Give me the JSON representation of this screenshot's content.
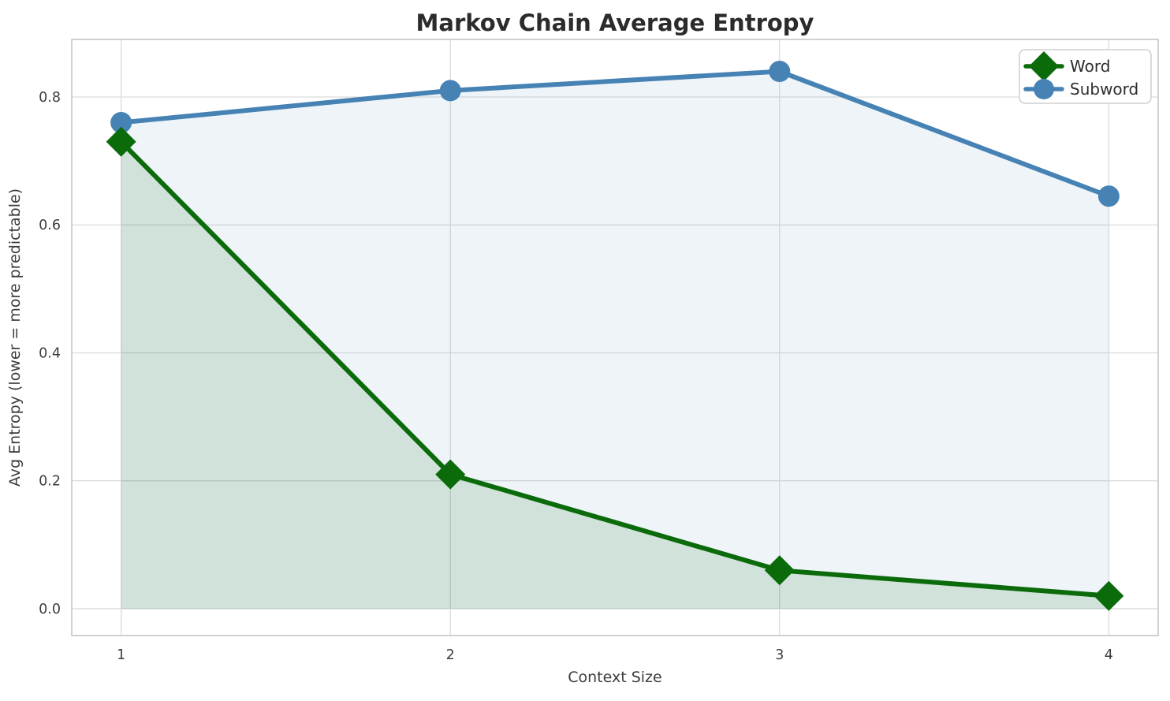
{
  "chart_data": {
    "type": "line",
    "title": "Markov Chain Average Entropy",
    "xlabel": "Context Size",
    "ylabel": "Avg Entropy (lower = more predictable)",
    "x": [
      1,
      2,
      3,
      4
    ],
    "xtick_labels": [
      "1",
      "2",
      "3",
      "4"
    ],
    "ytick_values": [
      0.0,
      0.2,
      0.4,
      0.6,
      0.8
    ],
    "xlim": [
      0.85,
      4.15
    ],
    "ylim": [
      -0.042,
      0.89
    ],
    "grid": true,
    "area_fill_baseline": 0.0,
    "legend": {
      "position": "top-right",
      "entries": [
        "Word",
        "Subword"
      ]
    },
    "series": [
      {
        "name": "Word",
        "marker": "diamond",
        "color": "#0b6b0b",
        "fill_opacity": 0.13,
        "values": [
          0.73,
          0.21,
          0.06,
          0.02
        ]
      },
      {
        "name": "Subword",
        "marker": "circle",
        "color": "#4682b4",
        "fill_opacity": 0.09,
        "values": [
          0.76,
          0.81,
          0.84,
          0.645
        ]
      }
    ],
    "colors": {
      "grid": "#dcdcdc",
      "frame": "#cccccc",
      "title_text": "#2b2b2b",
      "axis_text": "#3d3d3d",
      "legend_border": "#cfcfcf"
    }
  }
}
